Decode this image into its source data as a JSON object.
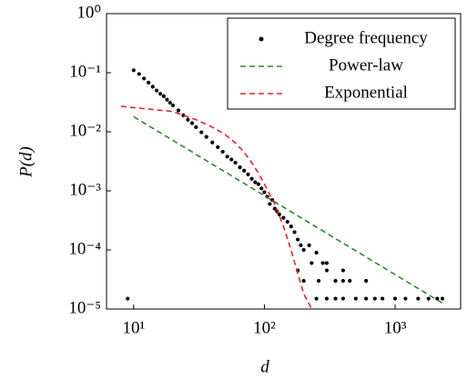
{
  "chart_data": {
    "type": "scatter",
    "xlabel": "d",
    "ylabel": "P(d)",
    "xscale": "log",
    "yscale": "log",
    "xlim": [
      6.2,
      3170
    ],
    "ylim": [
      1e-05,
      1
    ],
    "xticks": [
      {
        "value": 10,
        "label": "10¹"
      },
      {
        "value": 100,
        "label": "10²"
      },
      {
        "value": 1000,
        "label": "10³"
      }
    ],
    "yticks": [
      {
        "value": 1e-05,
        "label": "10⁻⁵"
      },
      {
        "value": 0.0001,
        "label": "10⁻⁴"
      },
      {
        "value": 0.001,
        "label": "10⁻³"
      },
      {
        "value": 0.01,
        "label": "10⁻²"
      },
      {
        "value": 0.1,
        "label": "10⁻¹"
      },
      {
        "value": 1,
        "label": "10⁰"
      }
    ],
    "legend": "upper right",
    "series": [
      {
        "name": "Degree frequency",
        "color": "#000000",
        "marker": "dot",
        "x": [
          9,
          10,
          11,
          12,
          13,
          14,
          15,
          16,
          17,
          18,
          19,
          20,
          22,
          24,
          26,
          28,
          30,
          33,
          36,
          40,
          44,
          48,
          52,
          56,
          60,
          65,
          70,
          75,
          80,
          85,
          90,
          95,
          100,
          105,
          110,
          115,
          120,
          125,
          130,
          140,
          150,
          160,
          170,
          180,
          190,
          200,
          220,
          250,
          280,
          300,
          180,
          200,
          230,
          260,
          300,
          350,
          400,
          400,
          450,
          600,
          250,
          300,
          350,
          400,
          500,
          600,
          700,
          800,
          1000,
          1200,
          1500,
          1800,
          2100,
          2300
        ],
        "values": [
          1.5e-05,
          0.11,
          0.095,
          0.08,
          0.068,
          0.058,
          0.05,
          0.044,
          0.04,
          0.035,
          0.031,
          0.028,
          0.023,
          0.019,
          0.016,
          0.014,
          0.012,
          0.0098,
          0.0082,
          0.0066,
          0.0055,
          0.0046,
          0.0038,
          0.0034,
          0.003,
          0.0025,
          0.0022,
          0.0019,
          0.0016,
          0.0014,
          0.0013,
          0.0011,
          0.00095,
          0.0008,
          0.0006,
          0.0007,
          0.0005,
          0.00045,
          0.0004,
          0.00035,
          0.0003,
          0.00025,
          0.0002,
          0.00015,
          0.00012,
          0.0001,
          0.00012,
          9e-05,
          6e-05,
          6e-05,
          4.5e-05,
          3e-05,
          6e-05,
          3e-05,
          4.5e-05,
          3e-05,
          3e-05,
          4.5e-05,
          3e-05,
          3e-05,
          1.5e-05,
          1.5e-05,
          1.5e-05,
          1.5e-05,
          1.5e-05,
          1.5e-05,
          1.5e-05,
          1.5e-05,
          1.5e-05,
          1.5e-05,
          1.5e-05,
          1.5e-05,
          1.5e-05,
          1.5e-05
        ]
      },
      {
        "name": "Power-law",
        "color": "#2a8a2a",
        "marker": "dashed-line",
        "x": [
          10,
          2300
        ],
        "values": [
          0.018,
          1.26e-05
        ]
      },
      {
        "name": "Exponential",
        "color": "#e8222a",
        "marker": "dashed-line",
        "x": [
          8,
          20,
          30,
          40,
          50,
          60,
          70,
          80,
          90,
          100,
          120,
          140,
          160,
          180,
          200,
          230
        ],
        "values": [
          0.027,
          0.022,
          0.016,
          0.012,
          0.009,
          0.0065,
          0.0045,
          0.003,
          0.002,
          0.0013,
          0.0006,
          0.00025,
          0.0001,
          4e-05,
          1.8e-05,
          1e-05
        ]
      }
    ]
  }
}
